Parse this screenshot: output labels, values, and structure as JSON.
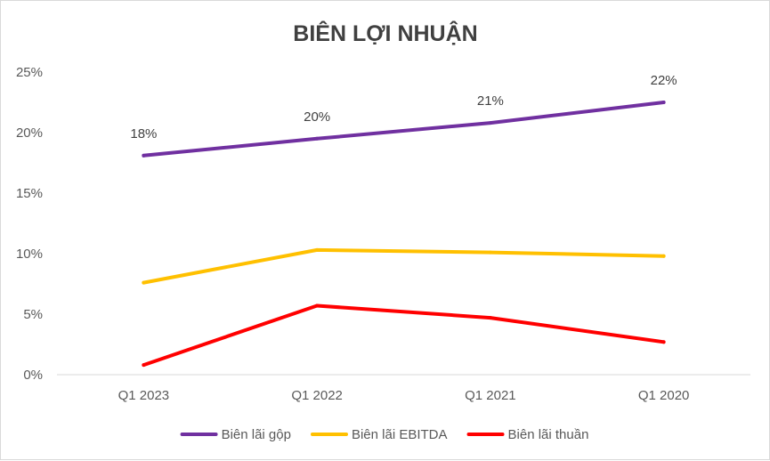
{
  "chart_data": {
    "type": "line",
    "title": "BIÊN LỢI NHUẬN",
    "categories": [
      "Q1 2023",
      "Q1 2022",
      "Q1 2021",
      "Q1 2020"
    ],
    "y_ticks": [
      "0%",
      "5%",
      "10%",
      "15%",
      "20%",
      "25%"
    ],
    "ylim": [
      0,
      25
    ],
    "grid": false,
    "legend_position": "bottom",
    "series": [
      {
        "name": "Biên lãi gộp",
        "color": "#7030a0",
        "values": [
          18.1,
          19.5,
          20.8,
          22.5
        ],
        "data_labels": [
          "18%",
          "20%",
          "21%",
          "22%"
        ]
      },
      {
        "name": "Biên lãi EBITDA",
        "color": "#ffc000",
        "values": [
          7.6,
          10.3,
          10.1,
          9.8
        ]
      },
      {
        "name": "Biên lãi thuần",
        "color": "#ff0000",
        "values": [
          0.8,
          5.7,
          4.7,
          2.7
        ]
      }
    ]
  }
}
